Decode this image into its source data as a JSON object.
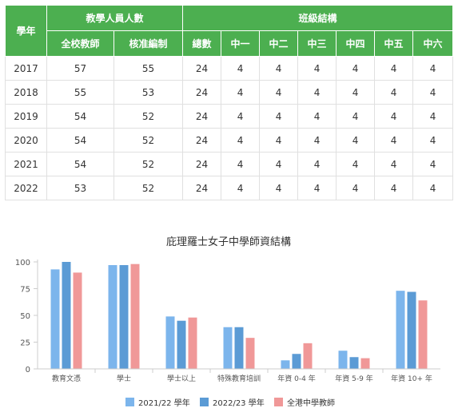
{
  "table": {
    "year_header": "學年",
    "group1_header": "教學人員人數",
    "group2_header": "班級結構",
    "sub_headers": [
      "全校教師",
      "核准編制",
      "總數",
      "中一",
      "中二",
      "中三",
      "中四",
      "中五",
      "中六"
    ],
    "rows": [
      [
        "2017",
        "57",
        "55",
        "24",
        "4",
        "4",
        "4",
        "4",
        "4",
        "4"
      ],
      [
        "2018",
        "55",
        "53",
        "24",
        "4",
        "4",
        "4",
        "4",
        "4",
        "4"
      ],
      [
        "2019",
        "54",
        "52",
        "24",
        "4",
        "4",
        "4",
        "4",
        "4",
        "4"
      ],
      [
        "2020",
        "54",
        "52",
        "24",
        "4",
        "4",
        "4",
        "4",
        "4",
        "4"
      ],
      [
        "2021",
        "54",
        "52",
        "24",
        "4",
        "4",
        "4",
        "4",
        "4",
        "4"
      ],
      [
        "2022",
        "53",
        "52",
        "24",
        "4",
        "4",
        "4",
        "4",
        "4",
        "4"
      ]
    ]
  },
  "chart_data": {
    "type": "bar",
    "title": "庇理羅士女子中學師資結構",
    "categories": [
      "教育文憑",
      "學士",
      "學士以上",
      "特殊教育培訓",
      "年資 0-4 年",
      "年資 5-9 年",
      "年資 10+ 年"
    ],
    "series": [
      {
        "name": "2021/22 學年",
        "color": "#7cb5ec",
        "values": [
          93,
          97,
          49,
          39,
          8,
          17,
          73
        ]
      },
      {
        "name": "2022/23 學年",
        "color": "#5b9bd5",
        "values": [
          100,
          97,
          45,
          39,
          14,
          11,
          72
        ]
      },
      {
        "name": "全港中學教師",
        "color": "#f09898",
        "values": [
          90,
          98,
          48,
          29,
          24,
          10,
          64
        ]
      }
    ],
    "ylim": [
      0,
      100
    ],
    "yticks": [
      0,
      25,
      50,
      75,
      100
    ],
    "grid": false,
    "legend": "bottom"
  }
}
